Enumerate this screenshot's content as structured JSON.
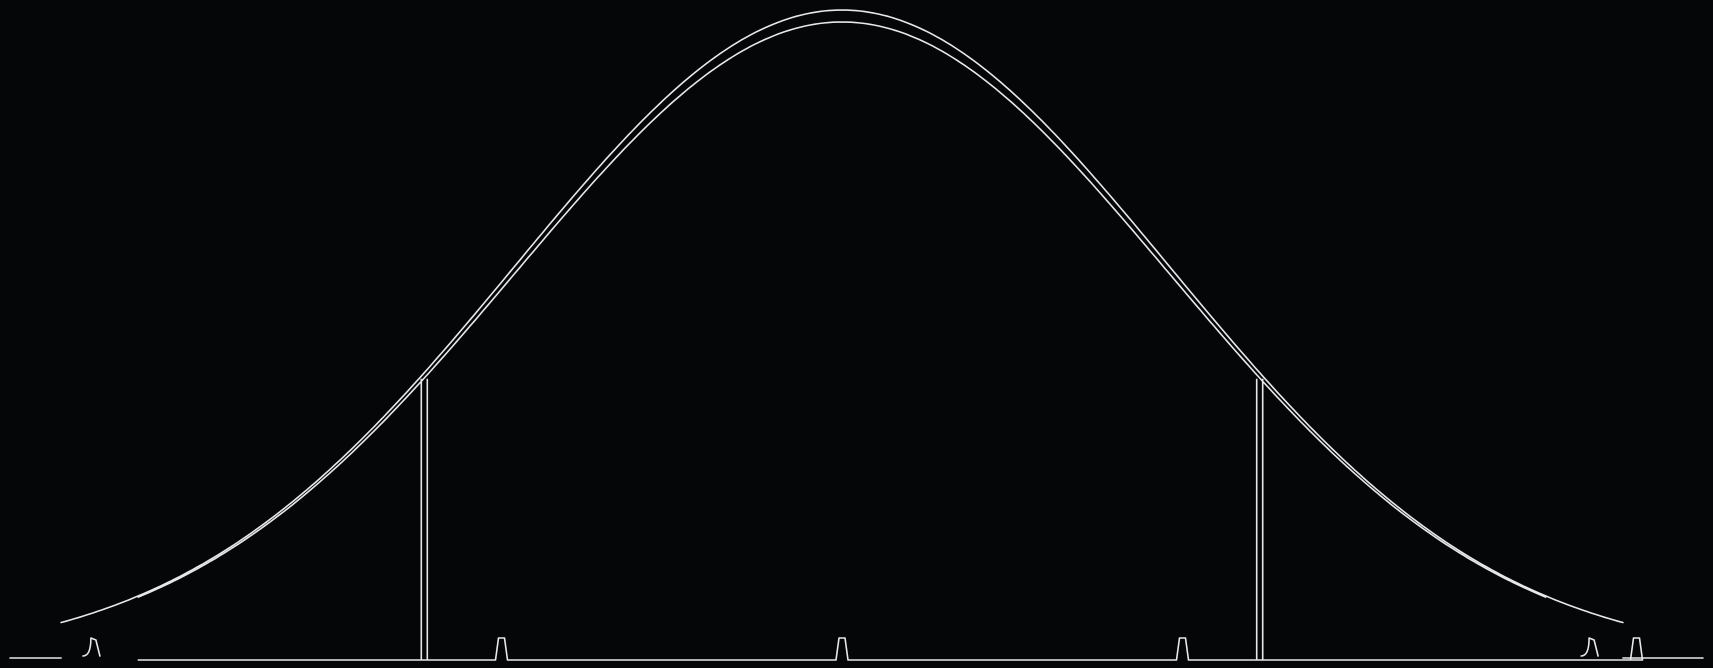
{
  "diagram": {
    "type": "bell-curve-outline",
    "background_color": "#050608",
    "line_color": "#e8e8e8",
    "curve": {
      "distribution": "normal",
      "outline": "double"
    },
    "markers": {
      "vertical_lines": [
        -1,
        1
      ],
      "tick_bumps": [
        -1.75,
        -0.75,
        0,
        0.75,
        1.75
      ],
      "outer_bumps": [
        -3,
        3
      ]
    }
  }
}
